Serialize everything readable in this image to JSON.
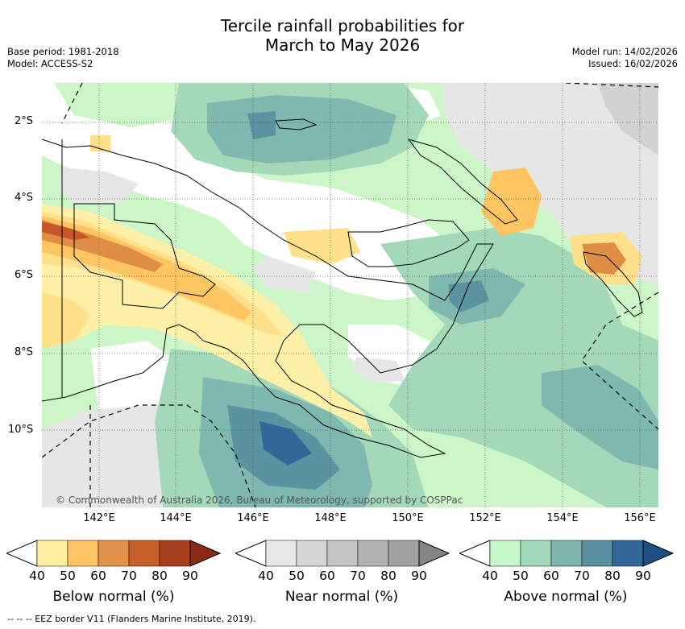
{
  "title": {
    "line1": "Tercile rainfall probabilities for",
    "line2": "March to May 2026"
  },
  "meta": {
    "base_period": "Base period: 1981-2018",
    "model": "Model: ACCESS-S2",
    "model_run": "Model run: 14/02/2026",
    "issued": "Issued: 16/02/2026"
  },
  "map": {
    "lat_labels": [
      "2°S",
      "4°S",
      "6°S",
      "8°S",
      "10°S"
    ],
    "lon_labels": [
      "142°E",
      "144°E",
      "146°E",
      "148°E",
      "150°E",
      "152°E",
      "154°E",
      "156°E"
    ],
    "copyright": "© Commonwealth of Australia 2026, Bureau of Meteorology, supported by COSPPac",
    "colors": {
      "below_40": "#fff0a8",
      "below_50": "#ffe08a",
      "below_60": "#fdc562",
      "below_70": "#e08e46",
      "below_80": "#c7572a",
      "near_40": "#e6e6e6",
      "near_50": "#d2d2d2",
      "above_40": "#ccf5c8",
      "above_50": "#a3d9b9",
      "above_60": "#7eb8ae",
      "above_70": "#5b93a0",
      "above_80": "#336699"
    }
  },
  "legends": [
    {
      "title": "Below normal (%)",
      "ticks": [
        "40",
        "50",
        "60",
        "70",
        "80",
        "90"
      ],
      "colors": [
        "#ffffff",
        "#ffeda0",
        "#fdc562",
        "#e0924a",
        "#c8602a",
        "#a8401f",
        "#8a2a14"
      ]
    },
    {
      "title": "Near normal (%)",
      "ticks": [
        "40",
        "50",
        "60",
        "70",
        "80",
        "90"
      ],
      "colors": [
        "#ffffff",
        "#e8e8e8",
        "#d6d6d6",
        "#c4c4c4",
        "#b2b2b2",
        "#a0a0a0",
        "#858585"
      ]
    },
    {
      "title": "Above normal (%)",
      "ticks": [
        "40",
        "50",
        "60",
        "70",
        "80",
        "90"
      ],
      "colors": [
        "#ffffff",
        "#c6f7c8",
        "#a3d7b9",
        "#7fb5ac",
        "#5a8fa0",
        "#336699",
        "#1d4f85"
      ]
    }
  ],
  "footnote": "--  --  -- EEZ border V11 (Flanders Marine Institute, 2019)."
}
